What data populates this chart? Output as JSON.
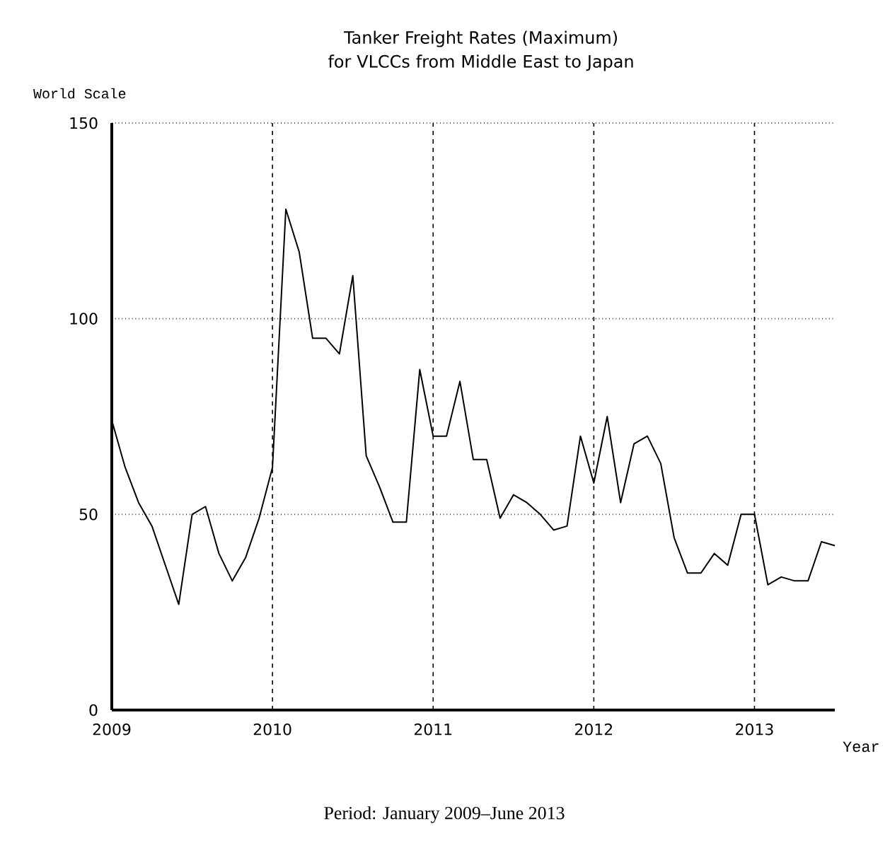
{
  "chart_data": {
    "type": "line",
    "title": "Tanker Freight Rates (Maximum)\nfor VLCCs from Middle East to Japan",
    "ylabel": "World Scale",
    "xlabel": "Year",
    "annotations": [
      "Period: January 2009–June 2013"
    ],
    "x": [
      2009.0,
      2009.0833,
      2009.1667,
      2009.25,
      2009.3333,
      2009.4167,
      2009.5,
      2009.5833,
      2009.6667,
      2009.75,
      2009.8333,
      2009.9167,
      2010.0,
      2010.0833,
      2010.1667,
      2010.25,
      2010.3333,
      2010.4167,
      2010.5,
      2010.5833,
      2010.6667,
      2010.75,
      2010.8333,
      2010.9167,
      2011.0,
      2011.0833,
      2011.1667,
      2011.25,
      2011.3333,
      2011.4167,
      2011.5,
      2011.5833,
      2011.6667,
      2011.75,
      2011.8333,
      2011.9167,
      2012.0,
      2012.0833,
      2012.1667,
      2012.25,
      2012.3333,
      2012.4167,
      2012.5,
      2012.5833,
      2012.6667,
      2012.75,
      2012.8333,
      2012.9167,
      2013.0,
      2013.0833,
      2013.1667,
      2013.25,
      2013.3333,
      2013.4167,
      2013.5
    ],
    "values": [
      74,
      62,
      53,
      47,
      37,
      27,
      50,
      52,
      40,
      33,
      39,
      49,
      62,
      128,
      117,
      95,
      95,
      91,
      111,
      65,
      57,
      48,
      48,
      87,
      70,
      70,
      84,
      64,
      64,
      49,
      55,
      53,
      50,
      46,
      47,
      70,
      58,
      75,
      53,
      68,
      70,
      63,
      44,
      35,
      35,
      40,
      37,
      50,
      50,
      32,
      34,
      33,
      33,
      43,
      42
    ],
    "color": "#000000",
    "xlim": [
      2009,
      2013.5
    ],
    "ylim": [
      0,
      150
    ],
    "xticks": [
      2009,
      2010,
      2011,
      2012,
      2013
    ],
    "yticks": [
      0,
      50,
      100,
      150
    ],
    "grid": true,
    "marker": "none",
    "line_style": "solid"
  }
}
